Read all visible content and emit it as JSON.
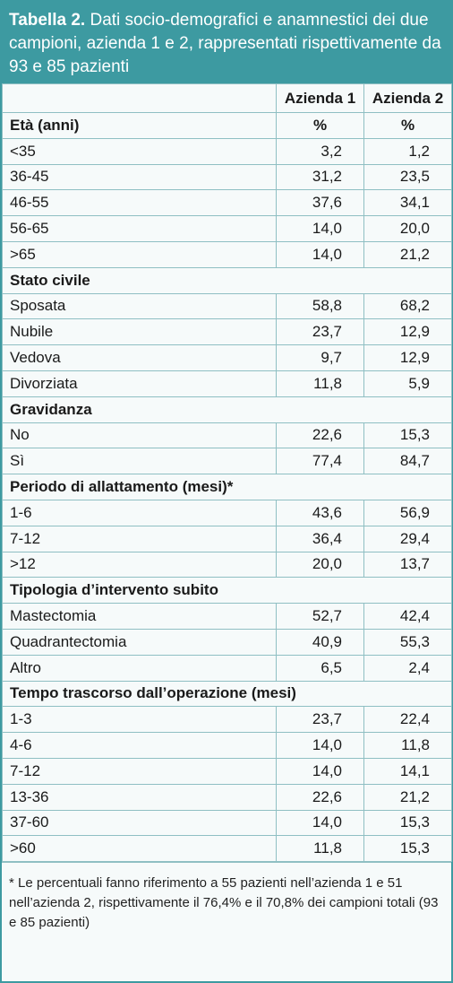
{
  "title": {
    "label": "Tabella 2.",
    "text": "Dati socio-demografici e anamnestici dei due campioni, azienda 1 e 2, rappresentati rispettivamente da 93 e 85 pazienti"
  },
  "table": {
    "columns": [
      "Azienda 1",
      "Azienda 2"
    ],
    "sections": [
      {
        "title": "Età (anni)",
        "units": [
          "%",
          "%"
        ],
        "rows": [
          {
            "label": "<35",
            "values": [
              "3,2",
              "1,2"
            ]
          },
          {
            "label": "36-45",
            "values": [
              "31,2",
              "23,5"
            ]
          },
          {
            "label": "46-55",
            "values": [
              "37,6",
              "34,1"
            ]
          },
          {
            "label": "56-65",
            "values": [
              "14,0",
              "20,0"
            ]
          },
          {
            "label": ">65",
            "values": [
              "14,0",
              "21,2"
            ]
          }
        ]
      },
      {
        "title": "Stato civile",
        "rows": [
          {
            "label": "Sposata",
            "values": [
              "58,8",
              "68,2"
            ]
          },
          {
            "label": "Nubile",
            "values": [
              "23,7",
              "12,9"
            ]
          },
          {
            "label": "Vedova",
            "values": [
              "9,7",
              "12,9"
            ]
          },
          {
            "label": "Divorziata",
            "values": [
              "11,8",
              "5,9"
            ]
          }
        ]
      },
      {
        "title": "Gravidanza",
        "rows": [
          {
            "label": "No",
            "values": [
              "22,6",
              "15,3"
            ]
          },
          {
            "label": "Sì",
            "values": [
              "77,4",
              "84,7"
            ]
          }
        ]
      },
      {
        "title": "Periodo di allattamento (mesi)*",
        "rows": [
          {
            "label": "1-6",
            "values": [
              "43,6",
              "56,9"
            ]
          },
          {
            "label": "7-12",
            "values": [
              "36,4",
              "29,4"
            ]
          },
          {
            "label": ">12",
            "values": [
              "20,0",
              "13,7"
            ]
          }
        ]
      },
      {
        "title": "Tipologia d’intervento subito",
        "rows": [
          {
            "label": "Mastectomia",
            "values": [
              "52,7",
              "42,4"
            ]
          },
          {
            "label": "Quadrantectomia",
            "values": [
              "40,9",
              "55,3"
            ]
          },
          {
            "label": "Altro",
            "values": [
              "6,5",
              "2,4"
            ]
          }
        ]
      },
      {
        "title": "Tempo trascorso dall’operazione (mesi)",
        "rows": [
          {
            "label": "1-3",
            "values": [
              "23,7",
              "22,4"
            ]
          },
          {
            "label": "4-6",
            "values": [
              "14,0",
              "11,8"
            ]
          },
          {
            "label": "7-12",
            "values": [
              "14,0",
              "14,1"
            ]
          },
          {
            "label": "13-36",
            "values": [
              "22,6",
              "21,2"
            ]
          },
          {
            "label": "37-60",
            "values": [
              "14,0",
              "15,3"
            ]
          },
          {
            "label": ">60",
            "values": [
              "11,8",
              "15,3"
            ]
          }
        ]
      }
    ]
  },
  "footnote": "* Le percentuali fanno riferimento a 55 pazienti nell’azienda 1 e 51 nell’azienda 2, rispettivamente il 76,4% e il 70,8% dei campioni totali (93 e 85 pazienti)"
}
